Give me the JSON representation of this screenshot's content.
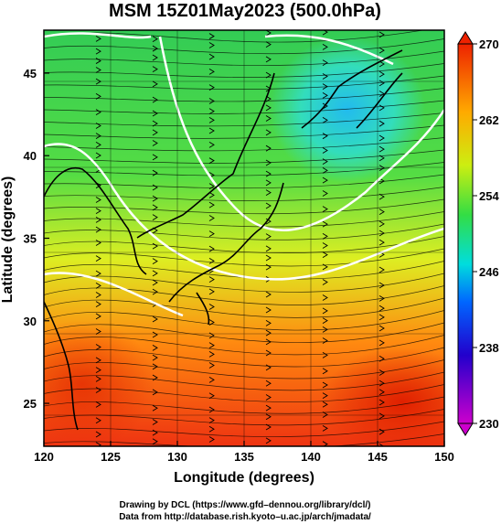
{
  "chart_data": {
    "type": "heatmap",
    "title": "MSM 15Z01May2023 (500.0hPa)",
    "xlabel": "Longitude (degrees)",
    "ylabel": "Latitude  (degrees)",
    "xlim": [
      120,
      150
    ],
    "ylim": [
      22.4,
      47.6
    ],
    "xticks": [
      120,
      125,
      130,
      135,
      140,
      145,
      150
    ],
    "yticks": [
      25,
      30,
      35,
      40,
      45
    ],
    "colorbar": {
      "range": [
        230,
        270
      ],
      "ticks": [
        230,
        238,
        246,
        254,
        262,
        270
      ],
      "colors": [
        "#cc00cc",
        "#0000cc",
        "#0088ff",
        "#00e5e5",
        "#33dd55",
        "#ccee11",
        "#ffaa00",
        "#ee2200"
      ]
    },
    "overlay": "wind vectors (streamlines) and white contour lines; coastlines in black",
    "credits": [
      "Drawing by DCL (https://www.gfd–dennou.org/library/dcl/)",
      "Data from http://database.rish.kyoto–u.ac.jp/arch/jmadata/"
    ]
  }
}
